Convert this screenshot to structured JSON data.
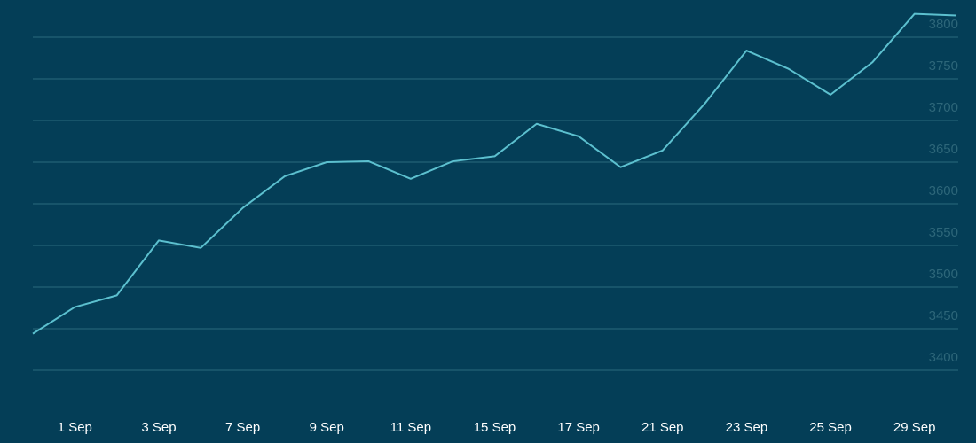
{
  "chart_data": {
    "type": "line",
    "categories": [
      null,
      "1 Sep",
      null,
      "3 Sep",
      null,
      "7 Sep",
      null,
      "9 Sep",
      null,
      "11 Sep",
      null,
      "15 Sep",
      null,
      "17 Sep",
      null,
      "21 Sep",
      null,
      "23 Sep",
      null,
      "25 Sep",
      null,
      "29 Sep",
      null
    ],
    "series": [
      {
        "color": "#5cc0cf",
        "values": [
          3444,
          3476,
          3490,
          3556,
          3547,
          3595,
          3633,
          3650,
          3651,
          3630,
          3651,
          3657,
          3696,
          3681,
          3644,
          3664,
          3720,
          3784,
          3762,
          3731,
          3770,
          3828,
          3826
        ]
      }
    ],
    "ylim": [
      3350,
      3850
    ],
    "yticks": [
      3400,
      3450,
      3500,
      3550,
      3600,
      3650,
      3700,
      3750,
      3800
    ],
    "grid": true
  }
}
